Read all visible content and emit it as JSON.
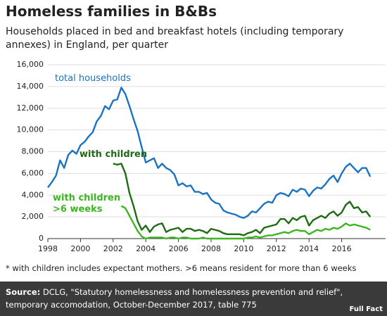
{
  "chart_data": {
    "type": "line",
    "title": "Homeless families in B&Bs",
    "subtitle": "Households placed in bed and breakfast hotels (including temporary annexes) in England, per quarter",
    "x": [
      1998,
      1998.25,
      1998.5,
      1998.75,
      1999,
      1999.25,
      1999.5,
      1999.75,
      2000,
      2000.25,
      2000.5,
      2000.75,
      2001,
      2001.25,
      2001.5,
      2001.75,
      2002,
      2002.25,
      2002.5,
      2002.75,
      2003,
      2003.25,
      2003.5,
      2003.75,
      2004,
      2004.25,
      2004.5,
      2004.75,
      2005,
      2005.25,
      2005.5,
      2005.75,
      2006,
      2006.25,
      2006.5,
      2006.75,
      2007,
      2007.25,
      2007.5,
      2007.75,
      2008,
      2008.25,
      2008.5,
      2008.75,
      2009,
      2009.25,
      2009.5,
      2009.75,
      2010,
      2010.25,
      2010.5,
      2010.75,
      2011,
      2011.25,
      2011.5,
      2011.75,
      2012,
      2012.25,
      2012.5,
      2012.75,
      2013,
      2013.25,
      2013.5,
      2013.75,
      2014,
      2014.25,
      2014.5,
      2014.75,
      2015,
      2015.25,
      2015.5,
      2015.75,
      2016,
      2016.25,
      2016.5,
      2016.75,
      2017,
      2017.25,
      2017.5,
      2017.75
    ],
    "series": [
      {
        "name": "total households",
        "color": "#1a73c2",
        "values": [
          4700,
          5200,
          5800,
          7200,
          6500,
          7700,
          8100,
          7800,
          8600,
          8900,
          9400,
          9800,
          10800,
          11300,
          12200,
          11900,
          12700,
          12800,
          13900,
          13300,
          12200,
          11000,
          9900,
          8400,
          7000,
          7200,
          7400,
          6500,
          6900,
          6500,
          6300,
          5900,
          4900,
          5100,
          4800,
          4900,
          4300,
          4300,
          4100,
          4200,
          3600,
          3300,
          3200,
          2600,
          2400,
          2300,
          2200,
          2000,
          1900,
          2100,
          2500,
          2400,
          2800,
          3200,
          3400,
          3300,
          4000,
          4200,
          4100,
          3900,
          4500,
          4300,
          4600,
          4500,
          3900,
          4400,
          4700,
          4600,
          5000,
          5500,
          5800,
          5200,
          6000,
          6600,
          6900,
          6500,
          6100,
          6500,
          6500,
          5700
        ]
      },
      {
        "name": "with children",
        "color": "#1e6b14",
        "values": [
          null,
          null,
          null,
          null,
          null,
          null,
          null,
          null,
          null,
          null,
          null,
          null,
          null,
          null,
          null,
          null,
          6900,
          6800,
          6900,
          6000,
          4200,
          3000,
          1600,
          800,
          1200,
          600,
          1100,
          1300,
          1400,
          600,
          800,
          900,
          1000,
          600,
          900,
          900,
          700,
          800,
          700,
          500,
          900,
          800,
          700,
          500,
          400,
          400,
          400,
          400,
          300,
          500,
          600,
          800,
          500,
          1000,
          1100,
          1200,
          1300,
          1800,
          1800,
          1400,
          1900,
          1700,
          2000,
          2100,
          1200,
          1700,
          1900,
          2100,
          1900,
          2300,
          2500,
          2100,
          2400,
          3100,
          3400,
          2800,
          2900,
          2400,
          2500,
          2000
        ]
      },
      {
        "name": "with children >6 weeks",
        "color": "#3db521",
        "values": [
          null,
          null,
          null,
          null,
          null,
          null,
          null,
          null,
          null,
          null,
          null,
          null,
          null,
          null,
          null,
          null,
          null,
          null,
          3000,
          2800,
          2100,
          1400,
          700,
          200,
          0,
          100,
          100,
          100,
          100,
          0,
          100,
          100,
          0,
          100,
          100,
          0,
          0,
          0,
          100,
          0,
          0,
          0,
          0,
          0,
          0,
          0,
          0,
          0,
          0,
          100,
          100,
          200,
          100,
          200,
          300,
          300,
          400,
          500,
          600,
          500,
          700,
          800,
          700,
          700,
          400,
          600,
          800,
          700,
          900,
          800,
          1000,
          900,
          1100,
          1400,
          1200,
          1300,
          1200,
          1100,
          1000,
          800
        ]
      }
    ],
    "xlim": [
      1998,
      2018
    ],
    "xticks": [
      1998,
      2000,
      2002,
      2004,
      2006,
      2008,
      2010,
      2012,
      2014,
      2016
    ],
    "ylim": [
      0,
      16000
    ],
    "yticks": [
      0,
      {
        "value": 2000,
        "label": "2,000"
      },
      {
        "value": 4000,
        "label": "4,000"
      },
      {
        "value": 6000,
        "label": "6,000"
      },
      {
        "value": 8000,
        "label": "8,000"
      },
      {
        "value": 10000,
        "label": "10,000"
      },
      {
        "value": 12000,
        "label": "12,000"
      },
      {
        "value": 14000,
        "label": "14,000"
      },
      {
        "value": 16000,
        "label": "16,000"
      }
    ],
    "grid": true,
    "footnote": "* with children includes expectant mothers. >6 means resident for more than 6 weeks",
    "source_label": "Source:",
    "source": "DCLG, \"Statutory homelessness and homelessness prevention and relief\", temporary accomodation, October-December 2017, table 775",
    "logo": "Full Fact"
  }
}
